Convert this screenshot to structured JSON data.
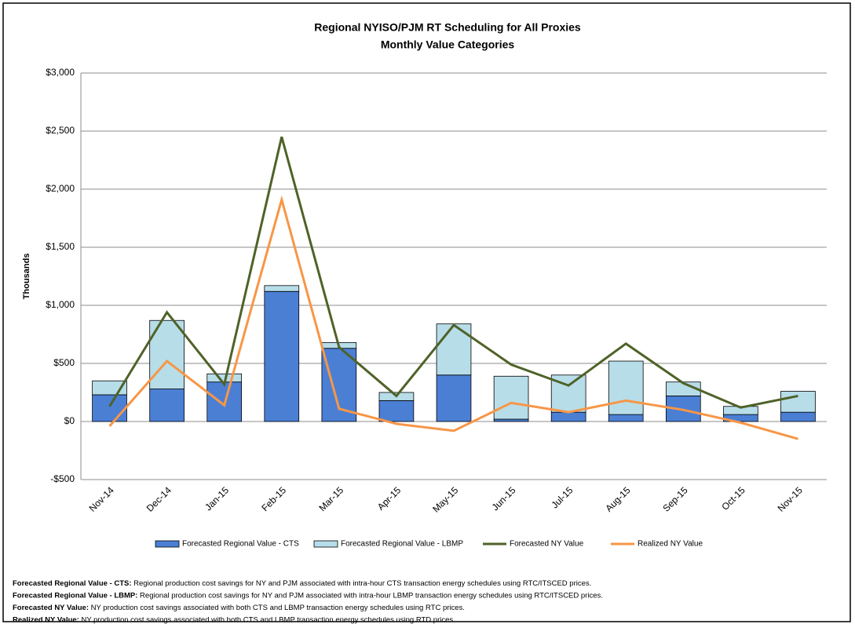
{
  "chart_data": {
    "type": "bar",
    "title": "Regional NYISO/PJM RT Scheduling for All Proxies",
    "subtitle": "Monthly Value Categories",
    "y_label": "Thousands",
    "categories": [
      "Nov-14",
      "Dec-14",
      "Jan-15",
      "Feb-15",
      "Mar-15",
      "Apr-15",
      "May-15",
      "Jun-15",
      "Jul-15",
      "Aug-15",
      "Sep-15",
      "Oct-15",
      "Nov-15"
    ],
    "series": [
      {
        "name": "Forecasted Regional Value - CTS",
        "type": "bar",
        "color": "#4a7fd4",
        "values": [
          230,
          280,
          340,
          1120,
          630,
          180,
          400,
          20,
          80,
          60,
          220,
          60,
          80
        ]
      },
      {
        "name": "Forecasted Regional Value - LBMP",
        "type": "bar",
        "color": "#b7dde8",
        "values": [
          120,
          590,
          70,
          50,
          50,
          70,
          440,
          370,
          320,
          460,
          120,
          70,
          180
        ]
      },
      {
        "name": "Forecasted NY Value",
        "type": "line",
        "color": "#4f6228",
        "values": [
          130,
          940,
          320,
          2450,
          640,
          220,
          830,
          490,
          310,
          670,
          330,
          120,
          220
        ]
      },
      {
        "name": "Realized NY Value",
        "type": "line",
        "color": "#f79646",
        "values": [
          -40,
          520,
          140,
          1910,
          110,
          -20,
          -80,
          160,
          80,
          180,
          100,
          -10,
          -150
        ]
      }
    ],
    "ylim": [
      -500,
      3000
    ],
    "yticks": [
      {
        "value": -500,
        "label": "-$500"
      },
      {
        "value": 0,
        "label": "$0"
      },
      {
        "value": 500,
        "label": "$500"
      },
      {
        "value": 1000,
        "label": "$1,000"
      },
      {
        "value": 1500,
        "label": "$1,500"
      },
      {
        "value": 2000,
        "label": "$2,000"
      },
      {
        "value": 2500,
        "label": "$2,500"
      },
      {
        "value": 3000,
        "label": "$3,000"
      }
    ],
    "grid": true,
    "legend": "bottom",
    "notes": [
      {
        "term": "Forecasted Regional Value - CTS:",
        "text": " Regional production cost savings for NY and PJM associated with intra-hour CTS transaction energy schedules using RTC/ITSCED prices."
      },
      {
        "term": "Forecasted Regional Value - LBMP:",
        "text": " Regional production cost savings for NY and PJM associated with intra-hour LBMP transaction energy schedules using RTC/ITSCED prices."
      },
      {
        "term": "Forecasted NY Value:",
        "text": " NY production cost savings associated with both CTS and LBMP transaction energy schedules using RTC prices."
      },
      {
        "term": "Realized NY Value:",
        "text": " NY production cost savings associated with both CTS and LBMP transaction energy schedules using RTD prices."
      }
    ]
  }
}
